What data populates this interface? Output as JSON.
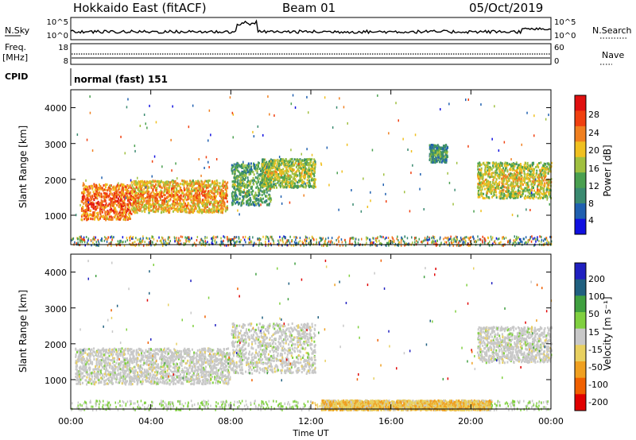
{
  "header": {
    "station": "Hokkaido East (fitACF)",
    "beam": "Beam 01",
    "date": "05/Oct/2019"
  },
  "noise_panel": {
    "left_label": "N.Sky",
    "right_label": "N.Search",
    "left_ticks": [
      "10^5",
      "10^0"
    ],
    "right_ticks": [
      "10^5",
      "10^0"
    ]
  },
  "freq_panel": {
    "left_label_line1": "Freq.",
    "left_label_line2": "[MHz]",
    "right_label": "Nave",
    "left_ticks": [
      "18",
      "8"
    ],
    "right_ticks": [
      "60",
      "0"
    ]
  },
  "cpid_panel": {
    "label": "CPID",
    "value": "normal (fast) 151"
  },
  "colors": {
    "power_scale": [
      "#1010e0",
      "#2060b0",
      "#3a8a70",
      "#4aa050",
      "#a0c040",
      "#f0c020",
      "#f08020",
      "#f04010",
      "#e01010"
    ],
    "velocity_scale": [
      "#e00000",
      "#f06000",
      "#f0a020",
      "#e8d060",
      "#c8c8c8",
      "#80d040",
      "#40a040",
      "#206080",
      "#2020c0"
    ]
  },
  "chart_data": [
    {
      "type": "heatmap",
      "quantity": "Power",
      "ylabel": "Slant Range [km]",
      "y_ticks": [
        1000,
        2000,
        3000,
        4000
      ],
      "ylim": [
        180,
        4500
      ],
      "xlim_hours": [
        0,
        24
      ],
      "colorbar": {
        "label": "Power [dB]",
        "ticks": [
          4,
          8,
          12,
          16,
          20,
          24,
          28
        ],
        "range": [
          0,
          32
        ]
      },
      "regions": [
        {
          "t": [
            0.5,
            3.0
          ],
          "range_km": [
            900,
            1900
          ],
          "value": 28
        },
        {
          "t": [
            3.0,
            7.8
          ],
          "range_km": [
            1100,
            2000
          ],
          "value": 24
        },
        {
          "t": [
            8.0,
            10.0
          ],
          "range_km": [
            1300,
            2500
          ],
          "value": 14
        },
        {
          "t": [
            9.5,
            12.2
          ],
          "range_km": [
            1800,
            2600
          ],
          "value": 18
        },
        {
          "t": [
            17.9,
            18.8
          ],
          "range_km": [
            2500,
            3000
          ],
          "value": 12
        },
        {
          "t": [
            20.3,
            24.0
          ],
          "range_km": [
            1500,
            2500
          ],
          "value": 20
        }
      ]
    },
    {
      "type": "heatmap",
      "quantity": "Velocity",
      "ylabel": "Slant Range [km]",
      "y_ticks": [
        1000,
        2000,
        3000,
        4000
      ],
      "ylim": [
        180,
        4500
      ],
      "xlim_hours": [
        0,
        24
      ],
      "colorbar": {
        "label": "Velocity [m s^-1]",
        "ticks": [
          -200,
          -100,
          -50,
          -15,
          15,
          50,
          100,
          200
        ]
      },
      "regions": [
        {
          "t": [
            0.2,
            8.0
          ],
          "range_km": [
            900,
            1900
          ],
          "value": 0
        },
        {
          "t": [
            8.0,
            12.2
          ],
          "range_km": [
            1200,
            2600
          ],
          "value": 0
        },
        {
          "t": [
            20.3,
            24.0
          ],
          "range_km": [
            1500,
            2500
          ],
          "value": 0
        },
        {
          "t": [
            12.5,
            21.0
          ],
          "range_km": [
            180,
            450
          ],
          "value": -30
        }
      ]
    }
  ],
  "x_axis": {
    "label": "Time UT",
    "ticks": [
      "00:00",
      "04:00",
      "08:00",
      "12:00",
      "16:00",
      "20:00",
      "00:00"
    ]
  },
  "colorbar_power": {
    "label": "Power [dB]",
    "ticks": [
      "28",
      "24",
      "20",
      "16",
      "12",
      "8",
      "4"
    ]
  },
  "colorbar_velocity": {
    "label": "Velocity [m s⁻¹]",
    "ticks": [
      "200",
      "100",
      "50",
      "15",
      "-15",
      "-50",
      "-100",
      "-200"
    ]
  }
}
